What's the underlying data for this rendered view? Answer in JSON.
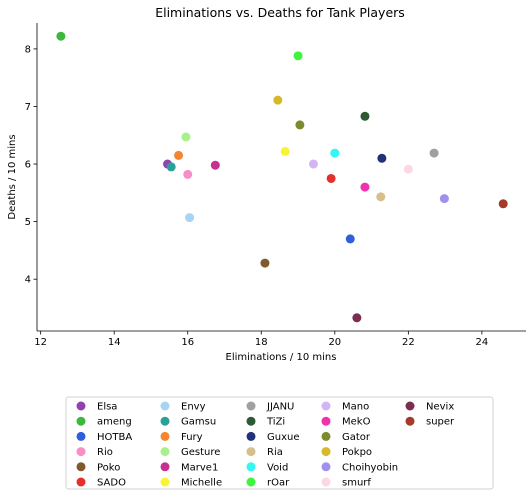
{
  "chart_data": {
    "type": "scatter",
    "title": "Eliminations vs. Deaths for Tank Players",
    "xlabel": "Eliminations / 10 mins",
    "ylabel": "Deaths / 10 mins",
    "xlim": [
      11.9,
      25.2
    ],
    "ylim": [
      3.1,
      8.45
    ],
    "xticks": [
      12,
      14,
      16,
      18,
      20,
      22,
      24
    ],
    "yticks": [
      4,
      5,
      6,
      7,
      8
    ],
    "grid": false,
    "legend_position": "bottom-center",
    "series": [
      {
        "name": "Elsa",
        "color": "#8e44ad",
        "x": 15.45,
        "y": 6.0
      },
      {
        "name": "ameng",
        "color": "#3cb83c",
        "x": 12.55,
        "y": 8.22
      },
      {
        "name": "HOTBA",
        "color": "#2f60d8",
        "x": 20.42,
        "y": 4.7
      },
      {
        "name": "Rio",
        "color": "#f78ec6",
        "x": 16.0,
        "y": 5.82
      },
      {
        "name": "Poko",
        "color": "#7f5a2c",
        "x": 18.1,
        "y": 4.28
      },
      {
        "name": "SADO",
        "color": "#e3302d",
        "x": 19.9,
        "y": 5.75
      },
      {
        "name": "Envy",
        "color": "#a6d4f5",
        "x": 16.05,
        "y": 5.07
      },
      {
        "name": "Gamsu",
        "color": "#2aa198",
        "x": 15.55,
        "y": 5.95
      },
      {
        "name": "Fury",
        "color": "#f5862f",
        "x": 15.75,
        "y": 6.15
      },
      {
        "name": "Gesture",
        "color": "#a8f08a",
        "x": 15.95,
        "y": 6.47
      },
      {
        "name": "Marve1",
        "color": "#c8308f",
        "x": 16.75,
        "y": 5.98
      },
      {
        "name": "Michelle",
        "color": "#f7f533",
        "x": 18.65,
        "y": 6.22
      },
      {
        "name": "JJANU",
        "color": "#a0a0a0",
        "x": 22.7,
        "y": 6.19
      },
      {
        "name": "TiZi",
        "color": "#2d5a34",
        "x": 20.82,
        "y": 6.83
      },
      {
        "name": "Guxue",
        "color": "#233278",
        "x": 21.28,
        "y": 6.1
      },
      {
        "name": "Ria",
        "color": "#d6bf8a",
        "x": 21.25,
        "y": 5.43
      },
      {
        "name": "Void",
        "color": "#33f7f2",
        "x": 20.0,
        "y": 6.19
      },
      {
        "name": "rOar",
        "color": "#3ef53e",
        "x": 19.0,
        "y": 7.88
      },
      {
        "name": "Mano",
        "color": "#d5b4f5",
        "x": 19.42,
        "y": 6.0
      },
      {
        "name": "MekO",
        "color": "#f032b0",
        "x": 20.82,
        "y": 5.6
      },
      {
        "name": "Gator",
        "color": "#7f8a2c",
        "x": 19.05,
        "y": 6.68
      },
      {
        "name": "Pokpo",
        "color": "#d6b82a",
        "x": 18.45,
        "y": 7.11
      },
      {
        "name": "Choihyobin",
        "color": "#a190f0",
        "x": 22.98,
        "y": 5.4
      },
      {
        "name": "smurf",
        "color": "#fdd7e4",
        "x": 22.0,
        "y": 5.91
      },
      {
        "name": "Nevix",
        "color": "#7a2e52",
        "x": 20.6,
        "y": 3.33
      },
      {
        "name": "super",
        "color": "#a33a2a",
        "x": 24.58,
        "y": 5.31
      }
    ]
  }
}
